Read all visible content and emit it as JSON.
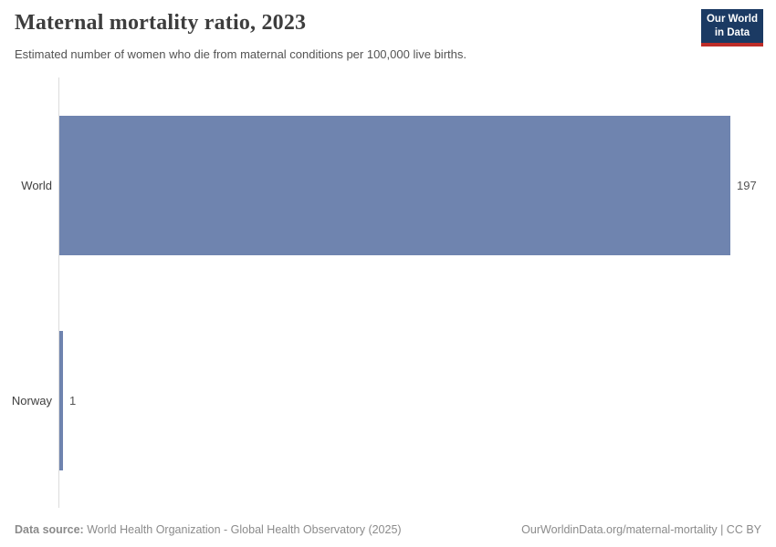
{
  "header": {
    "title": "Maternal mortality ratio, 2023",
    "subtitle": "Estimated number of women who die from maternal conditions per 100,000 live births.",
    "logo": {
      "line1": "Our World",
      "line2": "in Data"
    }
  },
  "chart_data": {
    "type": "bar",
    "orientation": "horizontal",
    "title": "Maternal mortality ratio, 2023",
    "subtitle": "Estimated number of women who die from maternal conditions per 100,000 live births.",
    "categories": [
      "World",
      "Norway"
    ],
    "values": [
      197,
      1
    ],
    "value_labels": [
      "197",
      "1"
    ],
    "xlabel": "",
    "ylabel": "",
    "xlim": [
      0,
      197
    ],
    "grid": false,
    "legend": "none",
    "bar_color": "#6f84af"
  },
  "footer": {
    "datasource_label": "Data source:",
    "datasource_text": " World Health Organization - Global Health Observatory (2025)",
    "link_text": "OurWorldinData.org/maternal-mortality | CC BY"
  },
  "colors": {
    "bar": "#6f84af",
    "axis": "#dcdcdc",
    "title_text": "#3d3d3d",
    "muted_text": "#8b8b8b",
    "logo_background": "#1b3a63",
    "logo_accent": "#be2d28"
  }
}
